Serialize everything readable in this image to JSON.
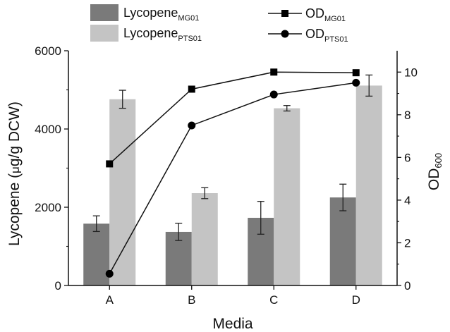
{
  "chart_data": {
    "type": "bar",
    "categories": [
      "A",
      "B",
      "C",
      "D"
    ],
    "xlabel": "Media",
    "ylabel": {
      "main": "Lycopene (",
      "mu": "μ",
      "rest": "g/g DCW)"
    },
    "y2label": {
      "main": "OD",
      "sub": "600"
    },
    "ylim": [
      0,
      6000
    ],
    "y2lim": [
      0,
      11
    ],
    "yticks": [
      "0",
      "2000",
      "4000",
      "6000"
    ],
    "y2ticks": [
      "0",
      "2",
      "4",
      "6",
      "8",
      "10"
    ],
    "bar_series": [
      {
        "base": "Lycopene",
        "sub": "MG01",
        "color": "#7a7a7a",
        "values": [
          1580,
          1370,
          1730,
          2250
        ],
        "errors": [
          200,
          220,
          420,
          340
        ]
      },
      {
        "base": "Lycopene",
        "sub": "PTS01",
        "color": "#c4c4c4",
        "values": [
          4760,
          2360,
          4530,
          5110
        ],
        "errors": [
          230,
          140,
          70,
          270
        ]
      }
    ],
    "line_series": [
      {
        "base": "OD",
        "sub": "MG01",
        "marker": "square",
        "values": [
          5.7,
          9.2,
          10.0,
          9.97
        ]
      },
      {
        "base": "OD",
        "sub": "PTS01",
        "marker": "circle",
        "values": [
          0.55,
          7.5,
          8.95,
          9.5
        ]
      }
    ],
    "legend_placement": "top",
    "grid": false
  }
}
